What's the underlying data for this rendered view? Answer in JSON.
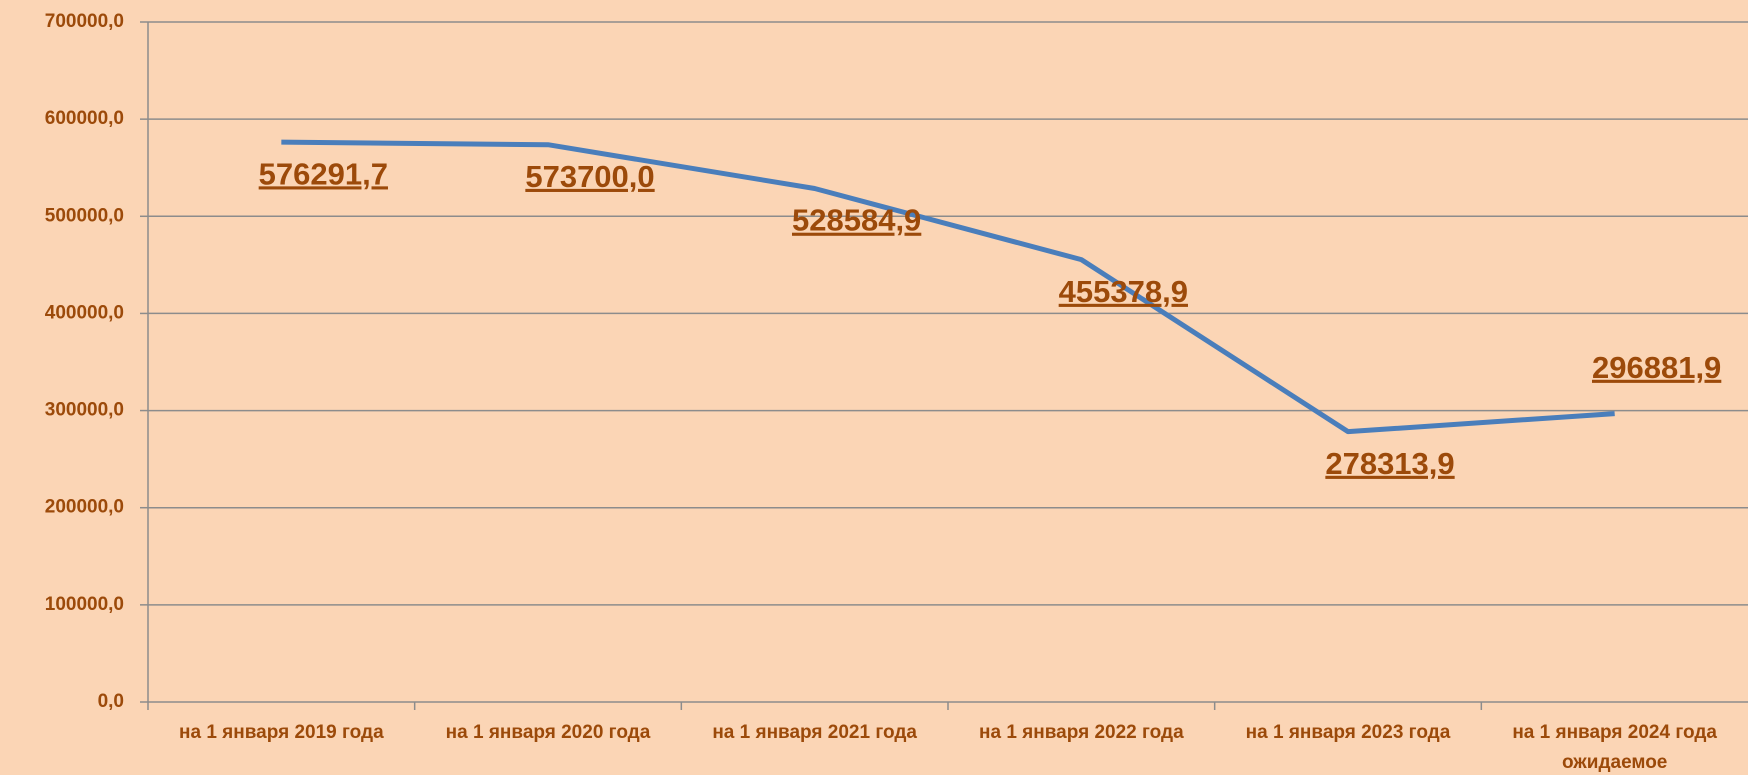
{
  "chart_data": {
    "type": "line",
    "categories": [
      "на 1 января 2019 года",
      "на 1 января 2020 года",
      "на 1 января 2021 года",
      "на 1 января 2022 года",
      "на 1 января 2023 года",
      "на 1 января 2024 года ожидаемое"
    ],
    "series": [
      {
        "color": "#4a7ebb",
        "values": [
          576291.7,
          573700.0,
          528584.9,
          455378.9,
          278313.9,
          296881.9
        ],
        "value_labels": [
          "576291,7",
          "573700,0",
          "528584,9",
          "455378,9",
          "278313,9",
          "296881,9"
        ]
      }
    ],
    "ylim": [
      0,
      700000
    ],
    "yticks": [
      {
        "value": 0,
        "label": "0,0"
      },
      {
        "value": 100000,
        "label": "100000,0"
      },
      {
        "value": 200000,
        "label": "200000,0"
      },
      {
        "value": 300000,
        "label": "300000,0"
      },
      {
        "value": 400000,
        "label": "400000,0"
      },
      {
        "value": 500000,
        "label": "500000,0"
      },
      {
        "value": 600000,
        "label": "600000,0"
      },
      {
        "value": 700000,
        "label": "700000,0"
      }
    ],
    "grid": true
  }
}
